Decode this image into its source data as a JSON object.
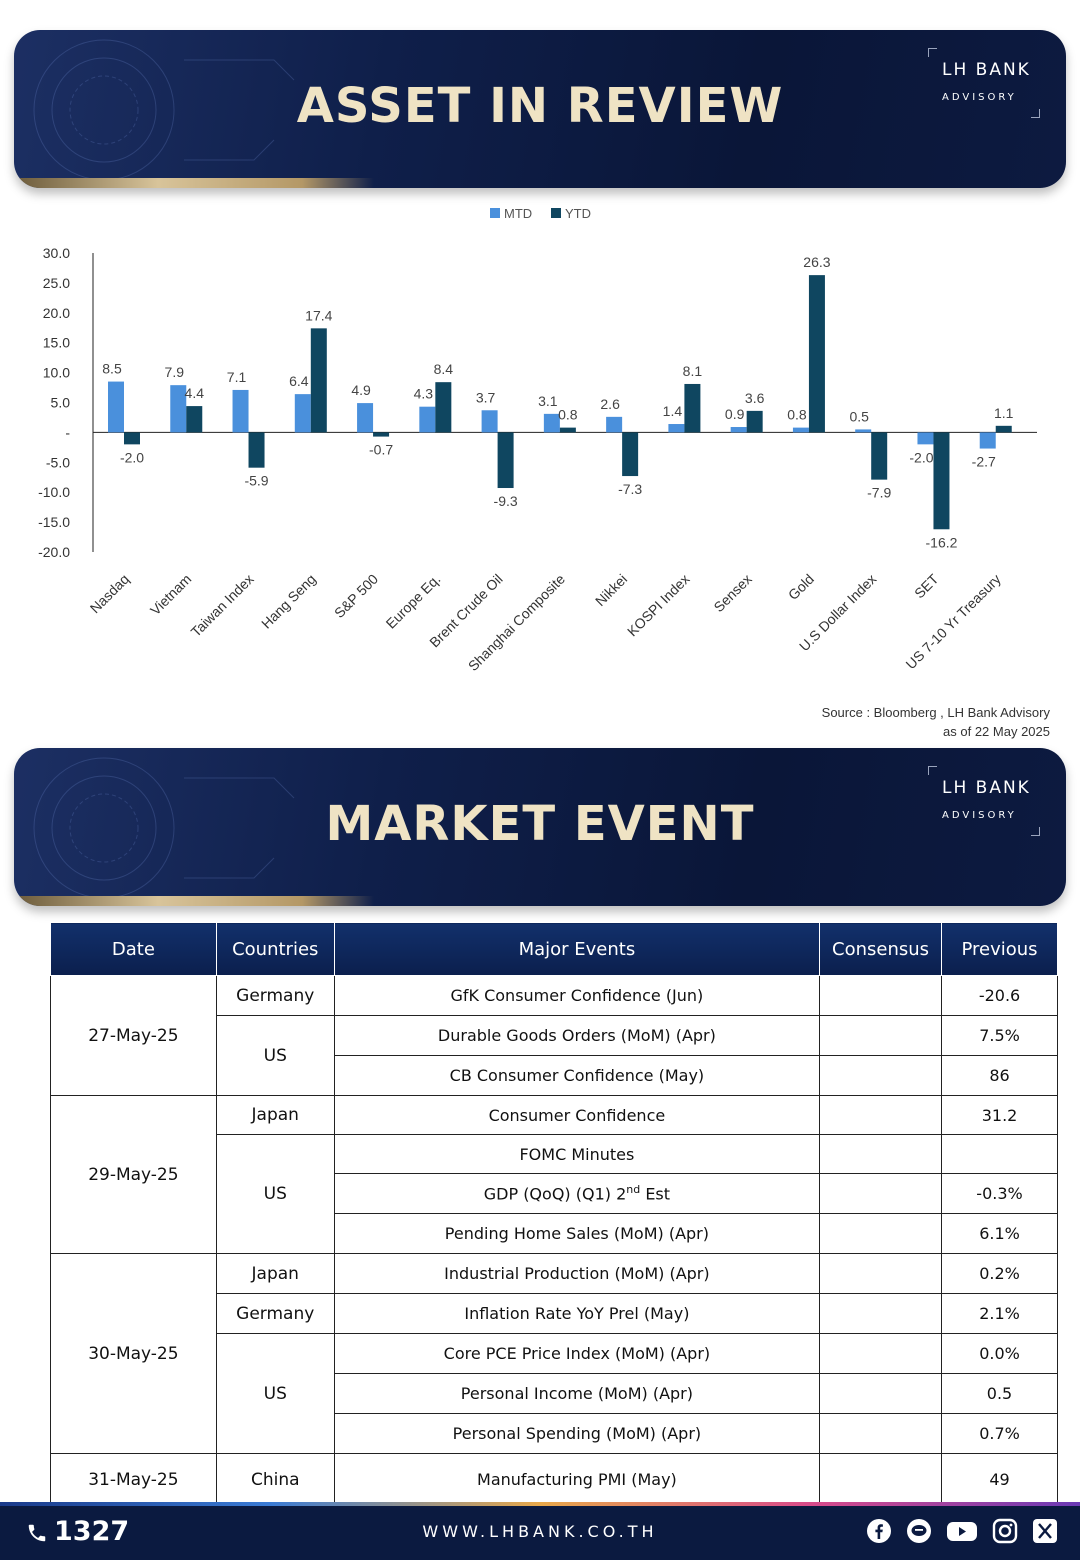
{
  "banner1": {
    "title": "ASSET IN REVIEW",
    "brand_line1": "LH BANK",
    "brand_line2": "ADVISORY"
  },
  "banner2": {
    "title": "MARKET EVENT",
    "brand_line1": "LH BANK",
    "brand_line2": "ADVISORY"
  },
  "chart_data": {
    "type": "bar",
    "categories": [
      "Nasdaq",
      "Vietnam",
      "Taiwan Index",
      "Hang Seng",
      "S&P 500",
      "Europe Eq.",
      "Brent Crude Oil",
      "Shanghai Composite",
      "Nikkei",
      "KOSPI Index",
      "Sensex",
      "Gold",
      "U.S Dollar Index",
      "SET",
      "US 7-10 Yr Treasury"
    ],
    "series": [
      {
        "name": "MTD",
        "color": "#4a90dc",
        "values": [
          8.5,
          7.9,
          7.1,
          6.4,
          4.9,
          4.3,
          3.7,
          3.1,
          2.6,
          1.4,
          0.9,
          0.8,
          0.5,
          -2.0,
          -2.7
        ]
      },
      {
        "name": "YTD",
        "color": "#0f4660",
        "values": [
          -2.0,
          4.4,
          -5.9,
          17.4,
          -0.7,
          8.4,
          -9.3,
          0.8,
          -7.3,
          8.1,
          3.6,
          26.3,
          -7.9,
          -16.2,
          1.1
        ]
      }
    ],
    "yticks": [
      "30.0",
      "25.0",
      "20.0",
      "15.0",
      "10.0",
      "5.0",
      "-",
      "-5.0",
      "-10.0",
      "-15.0",
      "-20.0"
    ],
    "ylim": [
      -20,
      30
    ],
    "legend_position": "top-center",
    "grid": false
  },
  "source": {
    "line1": "Source : Bloomberg , LH Bank Advisory",
    "line2": "as of 22 May 2025"
  },
  "table": {
    "headers": [
      "Date",
      "Countries",
      "Major Events",
      "Consensus",
      "Previous"
    ],
    "rows": [
      {
        "date": "27-May-25",
        "country": "Germany",
        "event": "GfK Consumer Confidence (Jun)",
        "consensus": "",
        "previous": "-20.6"
      },
      {
        "date": "",
        "country": "US",
        "event": "Durable Goods Orders (MoM) (Apr)",
        "consensus": "",
        "previous": "7.5%"
      },
      {
        "date": "",
        "country": "",
        "event": "CB Consumer Confidence (May)",
        "consensus": "",
        "previous": "86"
      },
      {
        "date": "29-May-25",
        "country": "Japan",
        "event": "Consumer Confidence",
        "consensus": "",
        "previous": "31.2"
      },
      {
        "date": "",
        "country": "US",
        "event": "FOMC Minutes",
        "consensus": "",
        "previous": ""
      },
      {
        "date": "",
        "country": "",
        "event_pre": "GDP (QoQ) (Q1) 2",
        "event_sup": "nd",
        "event_post": " Est",
        "consensus": "",
        "previous": "-0.3%"
      },
      {
        "date": "",
        "country": "",
        "event": "Pending Home Sales (MoM) (Apr)",
        "consensus": "",
        "previous": "6.1%"
      },
      {
        "date": "30-May-25",
        "country": "Japan",
        "event": "Industrial Production (MoM) (Apr)",
        "consensus": "",
        "previous": "0.2%"
      },
      {
        "date": "",
        "country": "Germany",
        "event": "Inflation Rate YoY Prel (May)",
        "consensus": "",
        "previous": "2.1%"
      },
      {
        "date": "",
        "country": "US",
        "event": "Core PCE Price Index (MoM) (Apr)",
        "consensus": "",
        "previous": "0.0%"
      },
      {
        "date": "",
        "country": "",
        "event": "Personal Income (MoM) (Apr)",
        "consensus": "",
        "previous": "0.5"
      },
      {
        "date": "",
        "country": "",
        "event": "Personal Spending (MoM) (Apr)",
        "consensus": "",
        "previous": "0.7%"
      },
      {
        "date": "31-May-25",
        "country": "China",
        "event": "Manufacturing PMI (May)",
        "consensus": "",
        "previous": "49"
      }
    ]
  },
  "footer": {
    "phone": "1327",
    "website": "WWW.LHBANK.CO.TH"
  },
  "social_icons": [
    "facebook-icon",
    "line-icon",
    "youtube-icon",
    "instagram-icon",
    "x-icon"
  ]
}
